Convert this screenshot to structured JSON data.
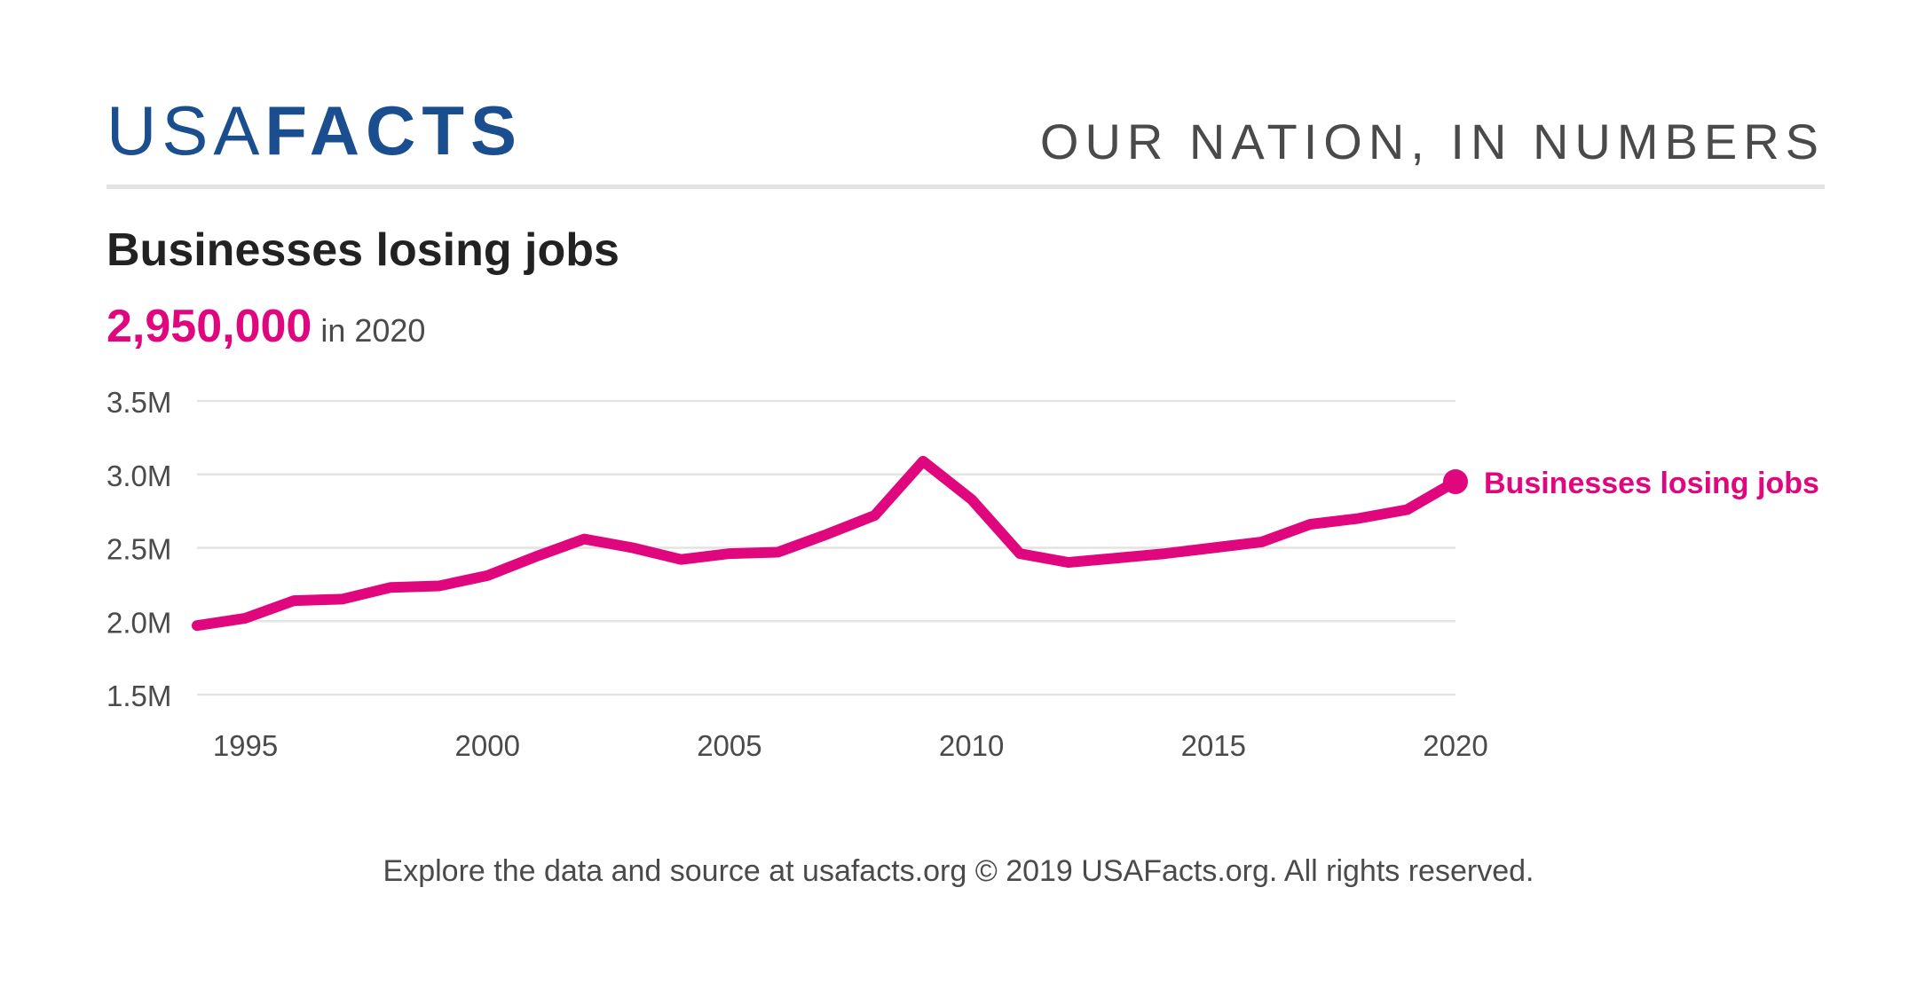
{
  "header": {
    "logo_light": "USA",
    "logo_bold": "FACTS",
    "tagline": "OUR NATION, IN NUMBERS"
  },
  "headline": {
    "title": "Businesses losing jobs",
    "value": "2,950,000",
    "value_suffix": "in 2020"
  },
  "footer": {
    "text": "Explore the data and source at usafacts.org © 2019 USAFacts.org. All rights reserved."
  },
  "colors": {
    "brand": "#1a4e8f",
    "series": "#e0067e",
    "grid": "#e3e3e3",
    "text": "#4a4a4a"
  },
  "chart_data": {
    "type": "line",
    "title": "",
    "xlabel": "",
    "ylabel": "",
    "xlim": [
      1994,
      2020
    ],
    "ylim": [
      1500000,
      3500000
    ],
    "grid": true,
    "x_ticks": [
      1995,
      2000,
      2005,
      2010,
      2015,
      2020
    ],
    "x_tick_labels": [
      "1995",
      "2000",
      "2005",
      "2010",
      "2015",
      "2020"
    ],
    "y_ticks": [
      1500000,
      2000000,
      2500000,
      3000000,
      3500000
    ],
    "y_tick_labels": [
      "1.5M",
      "2.0M",
      "2.5M",
      "3.0M",
      "3.5M"
    ],
    "series": [
      {
        "name": "Businesses losing jobs",
        "color": "#e0067e",
        "x": [
          1994,
          1995,
          1996,
          1997,
          1998,
          1999,
          2000,
          2001,
          2002,
          2003,
          2004,
          2005,
          2006,
          2007,
          2008,
          2009,
          2010,
          2011,
          2012,
          2013,
          2014,
          2015,
          2016,
          2017,
          2018,
          2019,
          2020
        ],
        "y": [
          1970000,
          2020000,
          2140000,
          2150000,
          2230000,
          2240000,
          2310000,
          2440000,
          2560000,
          2500000,
          2420000,
          2460000,
          2470000,
          2590000,
          2720000,
          3090000,
          2830000,
          2460000,
          2400000,
          2430000,
          2460000,
          2500000,
          2540000,
          2660000,
          2700000,
          2760000,
          2950000
        ]
      }
    ]
  }
}
